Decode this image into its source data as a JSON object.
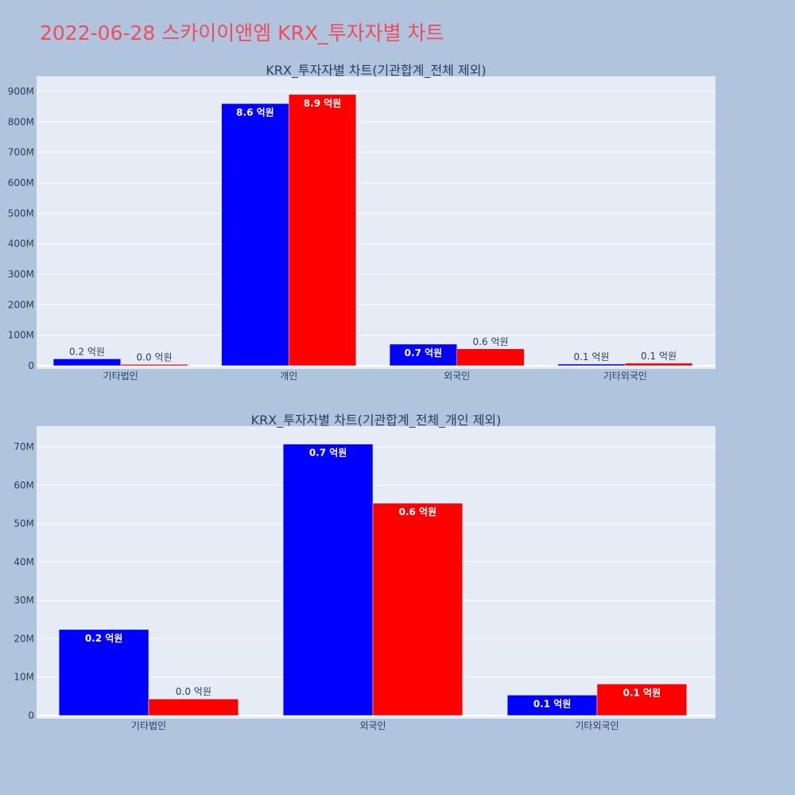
{
  "page": {
    "title": "2022-06-28 스카이이앤엠 KRX_투자자별 차트"
  },
  "colors": {
    "page_bg": "#b0c4de",
    "plot_bg": "#e5ecf6",
    "buy": "#0000ff",
    "sell": "#ff0000",
    "title": "#ef4c5c"
  },
  "chart_data": [
    {
      "type": "bar",
      "title": "KRX_투자자별 차트(기관합계_전체 제외)",
      "categories": [
        "기타법인",
        "개인",
        "외국인",
        "기타외국인"
      ],
      "series": [
        {
          "color": "#0000ff",
          "values": [
            22400000,
            860000000,
            70700000,
            5300000
          ],
          "labels": [
            "0.2 억원",
            "8.6 억원",
            "0.7 억원",
            "0.1 억원"
          ]
        },
        {
          "color": "#ff0000",
          "values": [
            4300000,
            890000000,
            55300000,
            8200000
          ],
          "labels": [
            "0.0 억원",
            "8.9 억원",
            "0.6 억원",
            "0.1 억원"
          ]
        }
      ],
      "ylim": [
        0,
        900000000
      ],
      "yticks": [
        0,
        100000000,
        200000000,
        300000000,
        400000000,
        500000000,
        600000000,
        700000000,
        800000000,
        900000000
      ],
      "ytick_labels": [
        "0",
        "100M",
        "200M",
        "300M",
        "400M",
        "500M",
        "600M",
        "700M",
        "800M",
        "900M"
      ],
      "grid": true
    },
    {
      "type": "bar",
      "title": "KRX_투자자별 차트(기관합계_전체_개인 제외)",
      "categories": [
        "기타법인",
        "외국인",
        "기타외국인"
      ],
      "series": [
        {
          "color": "#0000ff",
          "values": [
            22400000,
            70700000,
            5300000
          ],
          "labels": [
            "0.2 억원",
            "0.7 억원",
            "0.1 억원"
          ]
        },
        {
          "color": "#ff0000",
          "values": [
            4300000,
            55300000,
            8200000
          ],
          "labels": [
            "0.0 억원",
            "0.6 억원",
            "0.1 억원"
          ]
        }
      ],
      "ylim": [
        0,
        70000000
      ],
      "yticks": [
        0,
        10000000,
        20000000,
        30000000,
        40000000,
        50000000,
        60000000,
        70000000
      ],
      "ytick_labels": [
        "0",
        "10M",
        "20M",
        "30M",
        "40M",
        "50M",
        "60M",
        "70M"
      ],
      "grid": true
    }
  ]
}
